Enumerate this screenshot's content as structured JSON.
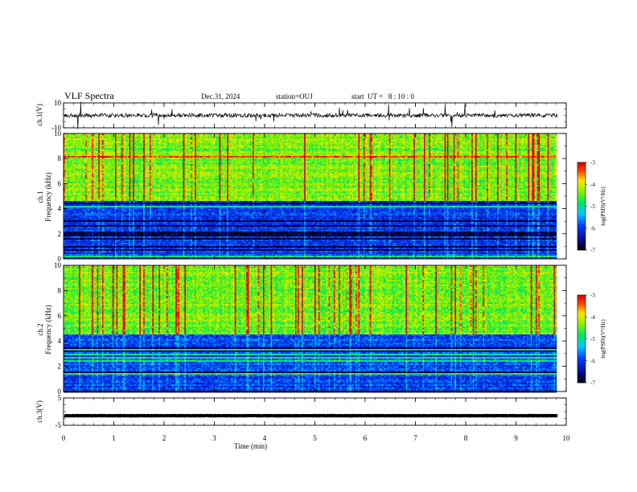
{
  "header": {
    "title": "VLF Spectra",
    "date": "Dec.31, 2024",
    "station": "station=OUJ",
    "start": "start  UT =   8 : 10 : 0"
  },
  "chart_data": [
    {
      "type": "line",
      "panel": "ch1-waveform",
      "ylabel": "ch.1(V)",
      "ylim": [
        -10,
        10
      ],
      "yticks": [
        "10",
        "-10"
      ],
      "baseline": 0,
      "color": "#000000"
    },
    {
      "type": "heatmap",
      "panel": "ch1-spectrogram",
      "ylabel": "ch.1\nFrequency  (kHz)",
      "ylim": [
        0,
        10
      ],
      "yticks": [
        "10",
        "8",
        "6",
        "4",
        "2",
        "0"
      ],
      "colorbar": {
        "label": "log(PSD)(V²/Hz)",
        "range": [
          -7,
          -3
        ],
        "ticks": [
          "-3",
          "-4",
          "-5",
          "-6",
          "-7"
        ]
      }
    },
    {
      "type": "heatmap",
      "panel": "ch2-spectrogram",
      "ylabel": "ch.2\nFrequency  (kHz)",
      "ylim": [
        0,
        10
      ],
      "yticks": [
        "10",
        "8",
        "6",
        "4",
        "2",
        "0"
      ],
      "colorbar": {
        "label": "log(PSD)(V²/Hz)",
        "range": [
          -7,
          -3
        ],
        "ticks": [
          "-3",
          "-4",
          "-5",
          "-6",
          "-7"
        ]
      }
    },
    {
      "type": "line",
      "panel": "ch3-waveform",
      "ylabel": "ch.3(V)",
      "ylim": [
        -5,
        5
      ],
      "yticks": [
        "5",
        "-5"
      ],
      "baseline": -1.5,
      "color": "#000000"
    }
  ],
  "xaxis": {
    "label": "Time  (min)",
    "xlim": [
      0,
      10
    ],
    "ticks": [
      "0",
      "1",
      "2",
      "3",
      "4",
      "5",
      "6",
      "7",
      "8",
      "9",
      "10"
    ],
    "data_end": 9.83
  }
}
